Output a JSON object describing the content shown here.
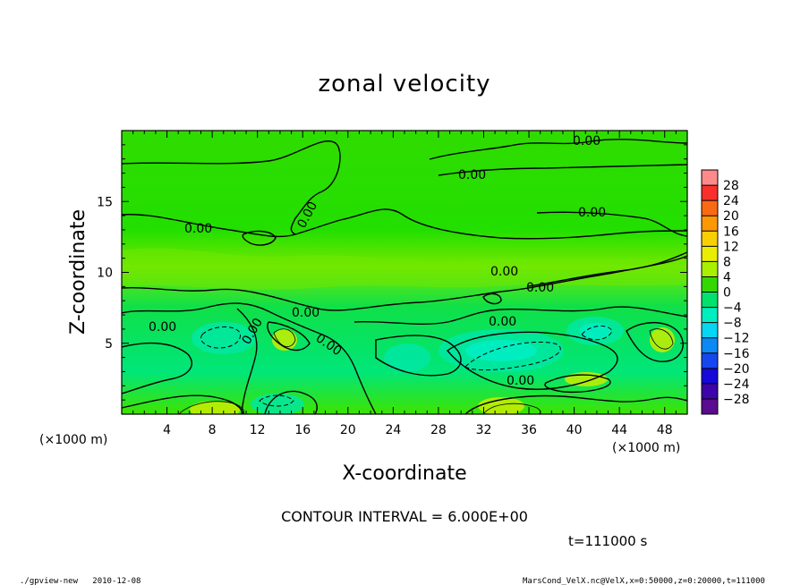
{
  "chart_data": {
    "type": "heatmap",
    "title": "zonal velocity",
    "xlabel": "X-coordinate",
    "ylabel": "Z-coordinate",
    "x_unit": "(×1000 m)",
    "y_unit": "(×1000 m)",
    "xlim": [
      0,
      50
    ],
    "ylim": [
      0,
      20
    ],
    "x_ticks": [
      "4",
      "8",
      "12",
      "16",
      "20",
      "24",
      "28",
      "32",
      "36",
      "40",
      "44",
      "48"
    ],
    "y_ticks": [
      "5",
      "10",
      "15"
    ],
    "colorbar_levels": [
      "28",
      "24",
      "20",
      "16",
      "12",
      "8",
      "4",
      "0",
      "−4",
      "−8",
      "−12",
      "−16",
      "−20",
      "−24",
      "−28"
    ],
    "colorbar_colors": [
      "#fd8a8a",
      "#f8302c",
      "#fa6a14",
      "#fc9804",
      "#f7cf03",
      "#e9ee00",
      "#a8f000",
      "#34d800",
      "#00e16d",
      "#00eec0",
      "#05d6f3",
      "#0b8af5",
      "#1646ee",
      "#1508d9",
      "#3c04a9",
      "#5a0b90"
    ],
    "contour_interval": "CONTOUR INTERVAL = 6.000E+00",
    "contour_labels": [
      "0.00"
    ],
    "time_label": "t=111000 s"
  },
  "footer": {
    "left": "./gpview-new   2010-12-08",
    "right": "MarsCond_VelX.nc@VelX,x=0:50000,z=0:20000,t=111000"
  }
}
